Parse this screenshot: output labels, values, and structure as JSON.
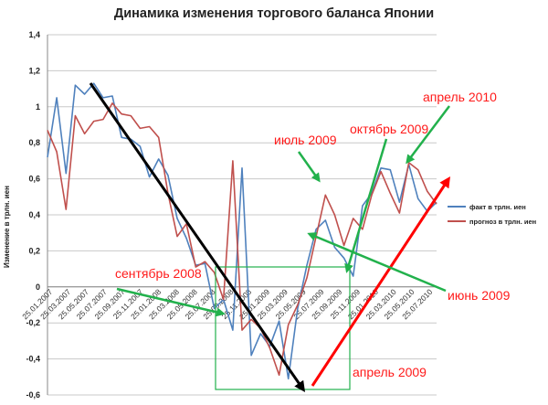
{
  "chart_data": {
    "type": "line",
    "title": "Динамика изменения торгового баланса Японии",
    "ylabel": "Изменение в трлн. иен",
    "xlabel": "",
    "ylim": [
      -0.6,
      1.4
    ],
    "yticks": [
      "1,4",
      "1,2",
      "1",
      "0,8",
      "0,6",
      "0,4",
      "0,2",
      "0",
      "-0,2",
      "-0,4",
      "-0,6"
    ],
    "grid": "horizontal",
    "legend_position": "right",
    "x_tick_labels": [
      "25.01.2007",
      "25.03.2007",
      "25.05.2007",
      "25.07.2007",
      "25.09.2007",
      "25.11.2007",
      "25.01.2008",
      "25.03.2008",
      "25.05.2008",
      "25.07.2008",
      "25.09.2008",
      "25.11.2008",
      "25.01.2009",
      "25.03.2009",
      "25.05.2009",
      "25.07.2009",
      "25.09.2009",
      "25.11.2009",
      "25.01.2010",
      "25.03.2010",
      "25.05.2010",
      "25.07.2010"
    ],
    "series": [
      {
        "name": "факт в трлн. иен",
        "color": "#4f81bd",
        "values": [
          0.72,
          1.05,
          0.63,
          1.12,
          1.07,
          1.13,
          1.05,
          1.06,
          0.83,
          0.82,
          0.78,
          0.61,
          0.71,
          0.62,
          0.38,
          0.27,
          0.12,
          0.13,
          -0.12,
          -0.07,
          -0.24,
          0.66,
          -0.38,
          -0.26,
          -0.33,
          -0.19,
          -0.51,
          -0.12,
          0.12,
          0.32,
          0.37,
          0.22,
          0.16,
          0.06,
          0.45,
          0.52,
          0.66,
          0.65,
          0.47,
          0.68,
          0.49,
          0.42,
          0.47
        ]
      },
      {
        "name": "прогноз в трлн. иен",
        "color": "#c0504d",
        "values": [
          0.87,
          0.75,
          0.43,
          0.95,
          0.85,
          0.92,
          0.93,
          1.02,
          0.96,
          0.95,
          0.88,
          0.89,
          0.83,
          0.52,
          0.28,
          0.35,
          0.11,
          0.14,
          0.08,
          -0.07,
          0.7,
          -0.24,
          -0.18,
          -0.23,
          -0.34,
          -0.49,
          -0.21,
          -0.1,
          0.05,
          0.28,
          0.51,
          0.4,
          0.23,
          0.38,
          0.32,
          0.51,
          0.64,
          0.52,
          0.41,
          0.69,
          0.65,
          0.53,
          0.46
        ]
      }
    ],
    "annotations": {
      "apr2010": "апрель 2010",
      "jul2009": "июль 2009",
      "oct2009": "октябрь 2009",
      "sep2008": "сентябрь 2008",
      "jun2009": "июнь 2009",
      "apr2009": "апрель 2009"
    },
    "annotation_colors": {
      "text": "#ff1a1a",
      "green_arrow": "#22b14c",
      "red_arrow": "#ff0000",
      "black_arrow": "#000000",
      "box": "#22b14c"
    }
  }
}
